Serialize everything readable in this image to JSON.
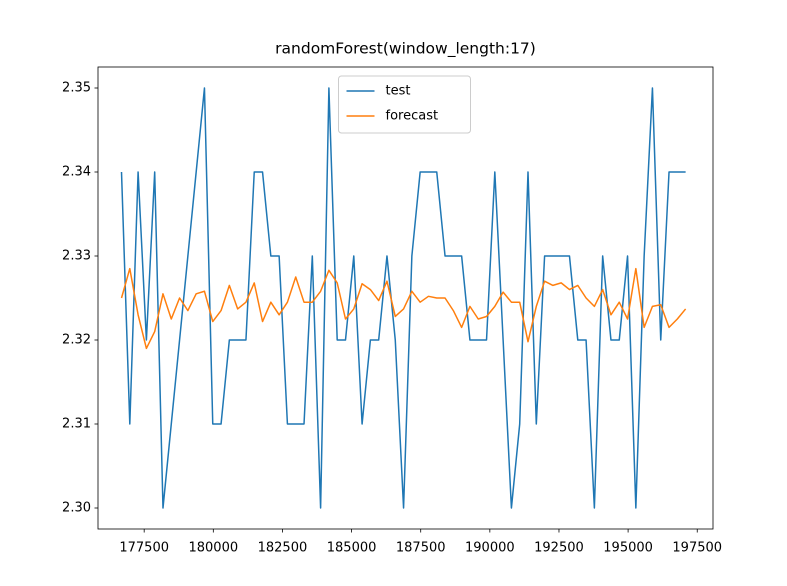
{
  "chart_data": {
    "type": "line",
    "title": "randomForest(window_length:17)",
    "x": [
      176680,
      176980,
      177280,
      177580,
      177880,
      178180,
      178480,
      178780,
      179080,
      179380,
      179680,
      179980,
      180280,
      180580,
      180880,
      181180,
      181480,
      181780,
      182080,
      182380,
      182680,
      182980,
      183280,
      183580,
      183880,
      184180,
      184480,
      184780,
      185080,
      185380,
      185680,
      185980,
      186280,
      186580,
      186880,
      187180,
      187480,
      187780,
      188080,
      188380,
      188680,
      188980,
      189280,
      189580,
      189880,
      190180,
      190480,
      190780,
      191080,
      191380,
      191680,
      191980,
      192280,
      192580,
      192880,
      193180,
      193480,
      193780,
      194080,
      194380,
      194680,
      194980,
      195280,
      195580,
      195880,
      196180,
      196480,
      196780,
      197080
    ],
    "series": [
      {
        "name": "test",
        "color": "#1f77b4",
        "values": [
          2.34,
          2.31,
          2.34,
          2.32,
          2.34,
          2.3,
          2.31,
          2.32,
          2.33,
          2.34,
          2.35,
          2.31,
          2.31,
          2.32,
          2.32,
          2.32,
          2.34,
          2.34,
          2.33,
          2.33,
          2.31,
          2.31,
          2.31,
          2.33,
          2.3,
          2.35,
          2.32,
          2.32,
          2.33,
          2.31,
          2.32,
          2.32,
          2.33,
          2.32,
          2.3,
          2.33,
          2.34,
          2.34,
          2.34,
          2.33,
          2.33,
          2.33,
          2.32,
          2.32,
          2.32,
          2.34,
          2.32,
          2.3,
          2.31,
          2.34,
          2.31,
          2.33,
          2.33,
          2.33,
          2.33,
          2.32,
          2.32,
          2.3,
          2.33,
          2.32,
          2.32,
          2.33,
          2.3,
          2.33,
          2.35,
          2.32,
          2.34,
          2.34,
          2.34
        ]
      },
      {
        "name": "forecast",
        "color": "#ff7f0e",
        "values": [
          2.325,
          2.3285,
          2.323,
          2.319,
          2.321,
          2.3255,
          2.3225,
          2.325,
          2.3235,
          2.3255,
          2.3258,
          2.3222,
          2.3235,
          2.3265,
          2.3237,
          2.3245,
          2.3268,
          2.3222,
          2.3245,
          2.323,
          2.3245,
          2.3275,
          2.3245,
          2.3245,
          2.3258,
          2.3283,
          2.3268,
          2.3225,
          2.3237,
          2.3267,
          2.326,
          2.3247,
          2.327,
          2.3228,
          2.3237,
          2.3258,
          2.3245,
          2.3252,
          2.325,
          2.325,
          2.3235,
          2.3215,
          2.324,
          2.3225,
          2.3228,
          2.324,
          2.3257,
          2.3245,
          2.3245,
          2.3198,
          2.324,
          2.327,
          2.3265,
          2.3268,
          2.326,
          2.3265,
          2.325,
          2.324,
          2.326,
          2.323,
          2.3245,
          2.3225,
          2.3285,
          2.3215,
          2.324,
          2.3242,
          2.3215,
          2.3225,
          2.3237
        ]
      }
    ],
    "xlim": [
      175830,
      198070
    ],
    "xticks": [
      177500,
      180000,
      182500,
      185000,
      187500,
      190000,
      192500,
      195000,
      197500
    ],
    "ylim": [
      2.2975,
      2.3525
    ],
    "yticks": [
      {
        "value": 2.3,
        "label": "2.30"
      },
      2.31,
      2.32,
      2.33,
      2.34,
      2.35
    ],
    "legend": "upper center"
  }
}
